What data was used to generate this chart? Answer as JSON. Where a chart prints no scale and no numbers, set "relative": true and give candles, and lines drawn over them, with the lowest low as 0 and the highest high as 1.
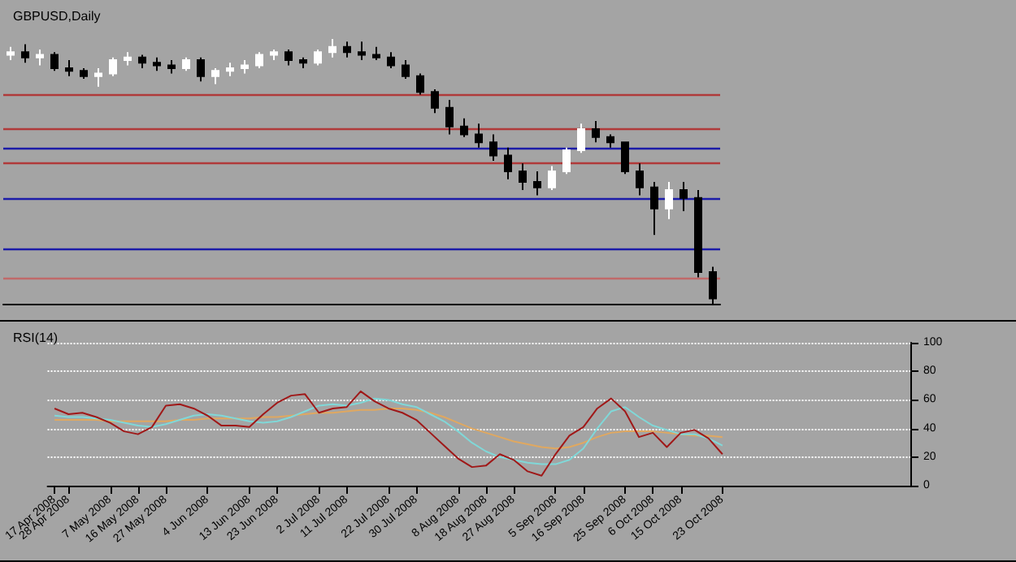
{
  "chart_data": [
    {
      "type": "candlestick",
      "title": "GBPUSD,Daily",
      "relative": true,
      "categories": [
        null,
        null,
        null,
        null,
        null,
        null,
        null,
        null,
        null,
        null,
        null,
        null,
        null,
        null,
        null,
        null,
        null,
        null,
        null,
        null,
        null,
        null,
        null,
        null,
        null,
        null,
        null,
        null,
        null,
        null,
        null,
        null,
        null,
        null,
        null,
        null,
        null,
        null,
        null,
        null,
        null,
        null,
        null,
        null,
        null,
        null,
        null,
        null,
        null
      ],
      "ohlc": [
        [
          0.94,
          0.97,
          0.92,
          0.95
        ],
        [
          0.95,
          0.98,
          0.91,
          0.93
        ],
        [
          0.93,
          0.96,
          0.9,
          0.94
        ],
        [
          0.94,
          0.95,
          0.88,
          0.89
        ],
        [
          0.89,
          0.92,
          0.86,
          0.88
        ],
        [
          0.88,
          0.89,
          0.85,
          0.86
        ],
        [
          0.86,
          0.89,
          0.82,
          0.87
        ],
        [
          0.87,
          0.93,
          0.86,
          0.92
        ],
        [
          0.92,
          0.95,
          0.9,
          0.93
        ],
        [
          0.93,
          0.94,
          0.89,
          0.91
        ],
        [
          0.91,
          0.93,
          0.88,
          0.9
        ],
        [
          0.9,
          0.92,
          0.87,
          0.89
        ],
        [
          0.89,
          0.93,
          0.88,
          0.92
        ],
        [
          0.92,
          0.93,
          0.84,
          0.86
        ],
        [
          0.86,
          0.89,
          0.83,
          0.88
        ],
        [
          0.88,
          0.91,
          0.86,
          0.89
        ],
        [
          0.89,
          0.92,
          0.87,
          0.9
        ],
        [
          0.9,
          0.95,
          0.89,
          0.94
        ],
        [
          0.94,
          0.96,
          0.92,
          0.95
        ],
        [
          0.95,
          0.96,
          0.9,
          0.92
        ],
        [
          0.92,
          0.93,
          0.89,
          0.91
        ],
        [
          0.91,
          0.96,
          0.9,
          0.95
        ],
        [
          0.95,
          1.0,
          0.93,
          0.97
        ],
        [
          0.97,
          0.99,
          0.93,
          0.95
        ],
        [
          0.95,
          0.99,
          0.92,
          0.94
        ],
        [
          0.94,
          0.97,
          0.92,
          0.93
        ],
        [
          0.93,
          0.95,
          0.89,
          0.9
        ],
        [
          0.9,
          0.92,
          0.85,
          0.86
        ],
        [
          0.86,
          0.87,
          0.79,
          0.8
        ],
        [
          0.8,
          0.81,
          0.72,
          0.74
        ],
        [
          0.74,
          0.77,
          0.64,
          0.67
        ],
        [
          0.67,
          0.7,
          0.63,
          0.64
        ],
        [
          0.64,
          0.68,
          0.59,
          0.61
        ],
        [
          0.61,
          0.64,
          0.54,
          0.56
        ],
        [
          0.56,
          0.59,
          0.47,
          0.5
        ],
        [
          0.5,
          0.53,
          0.43,
          0.46
        ],
        [
          0.46,
          0.5,
          0.41,
          0.44
        ],
        [
          0.44,
          0.52,
          0.43,
          0.5
        ],
        [
          0.5,
          0.59,
          0.49,
          0.58
        ],
        [
          0.58,
          0.68,
          0.57,
          0.66
        ],
        [
          0.66,
          0.69,
          0.61,
          0.63
        ],
        [
          0.63,
          0.64,
          0.59,
          0.61
        ],
        [
          0.61,
          0.61,
          0.49,
          0.5
        ],
        [
          0.5,
          0.53,
          0.41,
          0.44
        ],
        [
          0.44,
          0.46,
          0.26,
          0.36
        ],
        [
          0.36,
          0.46,
          0.32,
          0.43
        ],
        [
          0.43,
          0.46,
          0.35,
          0.4
        ],
        [
          0.4,
          0.43,
          0.1,
          0.12
        ],
        [
          0.12,
          0.14,
          0.0,
          0.02
        ]
      ],
      "ref_lines": [
        {
          "axis": "y",
          "value": 0.79,
          "color": "#b03a3a"
        },
        {
          "axis": "y",
          "value": 0.66,
          "color": "#b03a3a"
        },
        {
          "axis": "y",
          "value": 0.59,
          "color": "#1c1ca8"
        },
        {
          "axis": "y",
          "value": 0.53,
          "color": "#b03a3a"
        },
        {
          "axis": "y",
          "value": 0.4,
          "color": "#1c1ca8"
        },
        {
          "axis": "y",
          "value": 0.21,
          "color": "#1c1ca8"
        },
        {
          "axis": "y",
          "value": 0.1,
          "color": "#c06a6a"
        }
      ]
    },
    {
      "type": "line",
      "title": "RSI(14)",
      "grid": "y",
      "ylim": [
        0,
        100
      ],
      "yticks": [
        0,
        20,
        40,
        60,
        80,
        100
      ],
      "categories": [
        "17 Apr 2008",
        "28 Apr 2008",
        null,
        null,
        "7 May 2008",
        null,
        "16 May 2008",
        null,
        "27 May 2008",
        null,
        null,
        "4 Jun 2008",
        null,
        null,
        "13 Jun 2008",
        null,
        "23 Jun 2008",
        null,
        null,
        "2 Jul 2008",
        null,
        "11 Jul 2008",
        null,
        null,
        "22 Jul 2008",
        null,
        "30 Jul 2008",
        null,
        null,
        "8 Aug 2008",
        null,
        "18 Aug 2008",
        null,
        "27 Aug 2008",
        null,
        null,
        "5 Sep 2008",
        null,
        "16 Sep 2008",
        null,
        null,
        "25 Sep 2008",
        null,
        "6 Oct 2008",
        null,
        "15 Oct 2008",
        null,
        null,
        "23 Oct 2008",
        null,
        null,
        null,
        null,
        null,
        null,
        null,
        null,
        null,
        null,
        null,
        null,
        null
      ],
      "series": [
        {
          "color": "#e0a860",
          "values": [
            46,
            46,
            46,
            46,
            45,
            45,
            45,
            45,
            45,
            46,
            46,
            47,
            47,
            47,
            47,
            48,
            48,
            49,
            50,
            51,
            51,
            52,
            53,
            53,
            54,
            54,
            53,
            51,
            48,
            44,
            40,
            37,
            34,
            31,
            29,
            27,
            26,
            27,
            30,
            34,
            37,
            38,
            38,
            38,
            37,
            36,
            35,
            35,
            34,
            null,
            null,
            null,
            null,
            null,
            null,
            null,
            null,
            null,
            null,
            null,
            null,
            null
          ]
        },
        {
          "color": "#80d8d8",
          "values": [
            49,
            48,
            48,
            47,
            46,
            44,
            42,
            41,
            43,
            46,
            49,
            50,
            49,
            47,
            45,
            44,
            45,
            48,
            52,
            56,
            57,
            56,
            58,
            61,
            60,
            57,
            55,
            50,
            45,
            38,
            30,
            24,
            20,
            18,
            16,
            15,
            15,
            18,
            26,
            40,
            52,
            55,
            48,
            42,
            39,
            36,
            36,
            33,
            28,
            null,
            null,
            null,
            null,
            null,
            null,
            null,
            null,
            null,
            null,
            null,
            null,
            null
          ]
        },
        {
          "color": "#a01818",
          "values": [
            54,
            50,
            51,
            48,
            44,
            38,
            36,
            41,
            56,
            57,
            54,
            49,
            42,
            42,
            41,
            50,
            58,
            63,
            64,
            51,
            54,
            55,
            66,
            59,
            54,
            51,
            46,
            37,
            28,
            19,
            13,
            14,
            22,
            18,
            10,
            7,
            22,
            35,
            41,
            54,
            61,
            52,
            34,
            37,
            27,
            37,
            39,
            33,
            22,
            null,
            null,
            null,
            null,
            null,
            null,
            null,
            null,
            null,
            null,
            null,
            null,
            null
          ]
        }
      ]
    }
  ]
}
